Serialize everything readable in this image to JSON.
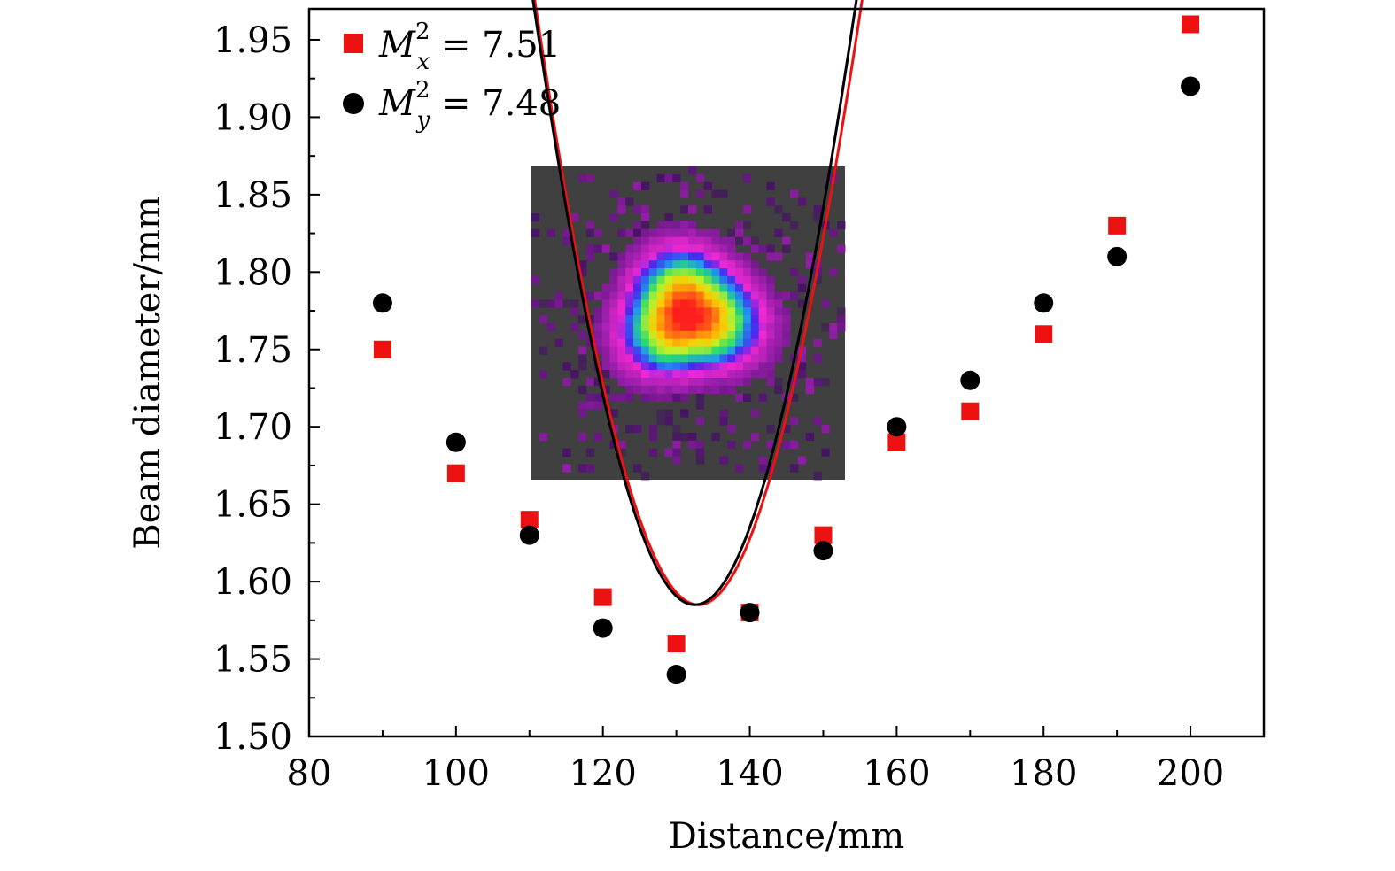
{
  "chart_data": {
    "type": "scatter",
    "xlabel": "Distance/mm",
    "ylabel": "Beam diameter/mm",
    "xlim": [
      80,
      210
    ],
    "ylim": [
      1.5,
      1.97
    ],
    "x_ticks": [
      "80",
      "100",
      "120",
      "140",
      "160",
      "180",
      "200"
    ],
    "y_ticks": [
      "1.50",
      "1.55",
      "1.60",
      "1.65",
      "1.70",
      "1.75",
      "1.80",
      "1.85",
      "1.90",
      "1.95"
    ],
    "series": [
      {
        "name": "Mx",
        "legend_main": "M",
        "legend_sup": "2",
        "legend_sub": "x",
        "legend_value": " = 7.51",
        "marker": "square",
        "color": "#ee1111",
        "x": [
          90,
          100,
          110,
          120,
          130,
          140,
          150,
          160,
          170,
          180,
          190,
          200
        ],
        "values": [
          1.75,
          1.67,
          1.64,
          1.59,
          1.56,
          1.58,
          1.63,
          1.69,
          1.71,
          1.76,
          1.83,
          1.96
        ],
        "fit": {
          "x0": 133.0,
          "w0": 1.585,
          "k": 2.8e-05
        }
      },
      {
        "name": "My",
        "legend_main": "M",
        "legend_sup": "2",
        "legend_sub": "y",
        "legend_value": " = 7.48",
        "marker": "circle",
        "color": "#000000",
        "x": [
          90,
          100,
          110,
          120,
          130,
          140,
          150,
          160,
          170,
          180,
          190,
          200
        ],
        "values": [
          1.78,
          1.69,
          1.63,
          1.57,
          1.54,
          1.58,
          1.62,
          1.7,
          1.73,
          1.78,
          1.81,
          1.92
        ],
        "fit": {
          "x0": 132.5,
          "w0": 1.585,
          "k": 2.87e-05
        }
      }
    ],
    "inset": {
      "description_free": true,
      "peak_color": "#ff2a2a",
      "background": "#404040"
    }
  }
}
